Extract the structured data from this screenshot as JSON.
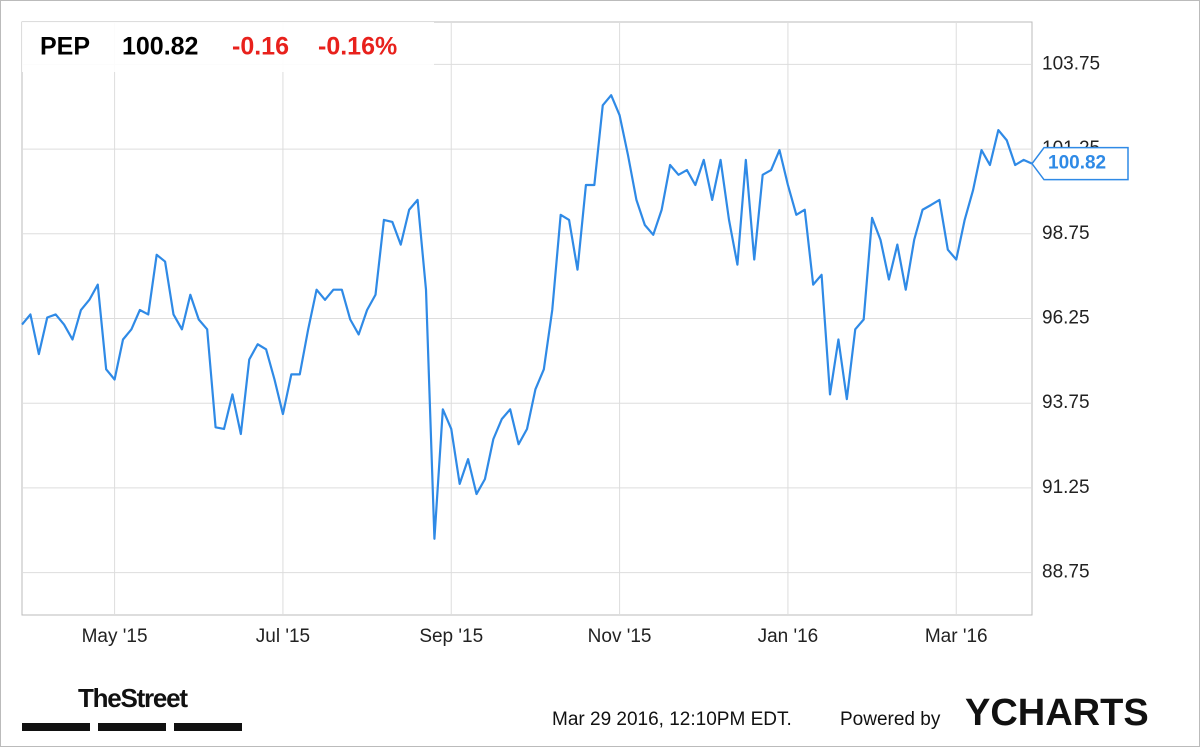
{
  "chart_data": {
    "type": "line",
    "ticker": "PEP",
    "change": "-0.16",
    "change_percent": "-0.16%",
    "categories": [
      null,
      null,
      null,
      null,
      null,
      null,
      null,
      null,
      null,
      null,
      null,
      "May '15",
      null,
      null,
      null,
      null,
      null,
      null,
      null,
      null,
      null,
      null,
      null,
      null,
      null,
      null,
      null,
      null,
      null,
      null,
      null,
      "Jul '15",
      null,
      null,
      null,
      null,
      null,
      null,
      null,
      null,
      null,
      null,
      null,
      null,
      null,
      null,
      null,
      null,
      null,
      null,
      null,
      "Sep '15",
      null,
      null,
      null,
      null,
      null,
      null,
      null,
      null,
      null,
      null,
      null,
      null,
      null,
      null,
      null,
      null,
      null,
      null,
      null,
      "Nov '15",
      null,
      null,
      null,
      null,
      null,
      null,
      null,
      null,
      null,
      null,
      null,
      null,
      null,
      null,
      null,
      null,
      null,
      null,
      null,
      "Jan '16",
      null,
      null,
      null,
      null,
      null,
      null,
      null,
      null,
      null,
      null,
      null,
      null,
      null,
      null,
      null,
      null,
      null,
      null,
      null,
      "Mar '16",
      null,
      null,
      null,
      null,
      null,
      null,
      null,
      null,
      null
    ],
    "values": [
      96.07,
      96.37,
      95.2,
      96.28,
      96.37,
      96.07,
      95.63,
      96.5,
      96.8,
      97.25,
      94.75,
      94.45,
      95.63,
      95.93,
      96.5,
      96.37,
      98.13,
      97.93,
      96.37,
      95.93,
      96.95,
      96.22,
      95.93,
      93.04,
      92.99,
      94.01,
      92.84,
      95.04,
      95.49,
      95.34,
      94.45,
      93.43,
      94.6,
      94.6,
      95.93,
      97.1,
      96.8,
      97.1,
      97.1,
      96.22,
      95.78,
      96.5,
      96.95,
      99.16,
      99.1,
      98.43,
      99.46,
      99.75,
      97.1,
      89.75,
      93.57,
      92.99,
      91.37,
      92.1,
      91.07,
      91.51,
      92.69,
      93.28,
      93.57,
      92.54,
      92.99,
      94.16,
      94.75,
      96.5,
      99.31,
      99.16,
      97.69,
      100.19,
      100.19,
      102.54,
      102.84,
      102.25,
      101.07,
      99.75,
      99.01,
      98.72,
      99.46,
      100.78,
      100.49,
      100.63,
      100.19,
      100.93,
      99.75,
      100.93,
      99.16,
      97.84,
      100.93,
      97.99,
      100.49,
      100.63,
      101.22,
      100.19,
      99.31,
      99.46,
      97.25,
      97.54,
      94.01,
      95.63,
      93.87,
      95.93,
      96.22,
      99.22,
      98.57,
      97.4,
      98.43,
      97.1,
      98.57,
      99.46,
      99.6,
      99.75,
      98.28,
      97.99,
      99.16,
      100.04,
      101.22,
      100.78,
      101.81,
      101.51,
      100.78,
      100.93,
      100.82
    ],
    "color": "#2f8ae6",
    "ylim": [
      87.5,
      105
    ],
    "yticks": [
      88.75,
      91.25,
      93.75,
      96.25,
      98.75,
      101.25,
      103.75
    ],
    "grid": true
  },
  "footer": {
    "brand": "TheStreet",
    "timestamp": "Mar 29 2016, 12:10PM EDT.",
    "powered_by": "Powered by",
    "provider": "YCHARTS"
  }
}
